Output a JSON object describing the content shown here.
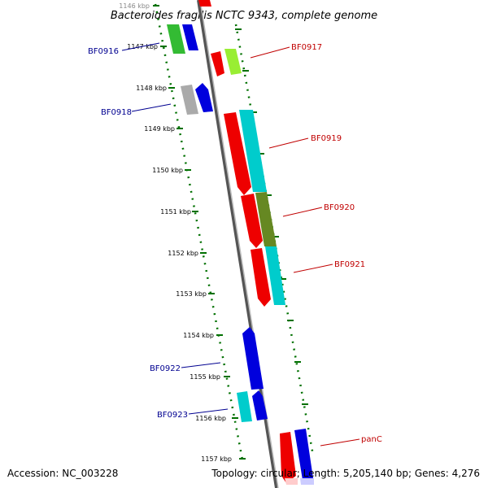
{
  "title": "Bacteroides fragilis NCTC 9343, complete genome",
  "footer": {
    "accession": "Accession: NC_003228",
    "topology": "Topology: circular; Length: 5,205,140 bp; Genes: 4,276"
  },
  "colors": {
    "backbone": "#808080",
    "ruler": "#007000",
    "label_forward": "#000090",
    "label_reverse": "#c00000"
  },
  "ruler": {
    "ticks": [
      "1146 kbp",
      "1147 kbp",
      "1148 kbp",
      "1149 kbp",
      "1150 kbp",
      "1151 kbp",
      "1152 kbp",
      "1153 kbp",
      "1154 kbp",
      "1155 kbp",
      "1156 kbp",
      "1157 kbp"
    ]
  },
  "gene_labels": {
    "BF0916": "BF0916",
    "BF0917": "BF0917",
    "BF0918": "BF0918",
    "BF0919": "BF0919",
    "BF0920": "BF0920",
    "BF0921": "BF0921",
    "BF0922": "BF0922",
    "BF0923": "BF0923",
    "panC": "panC"
  }
}
